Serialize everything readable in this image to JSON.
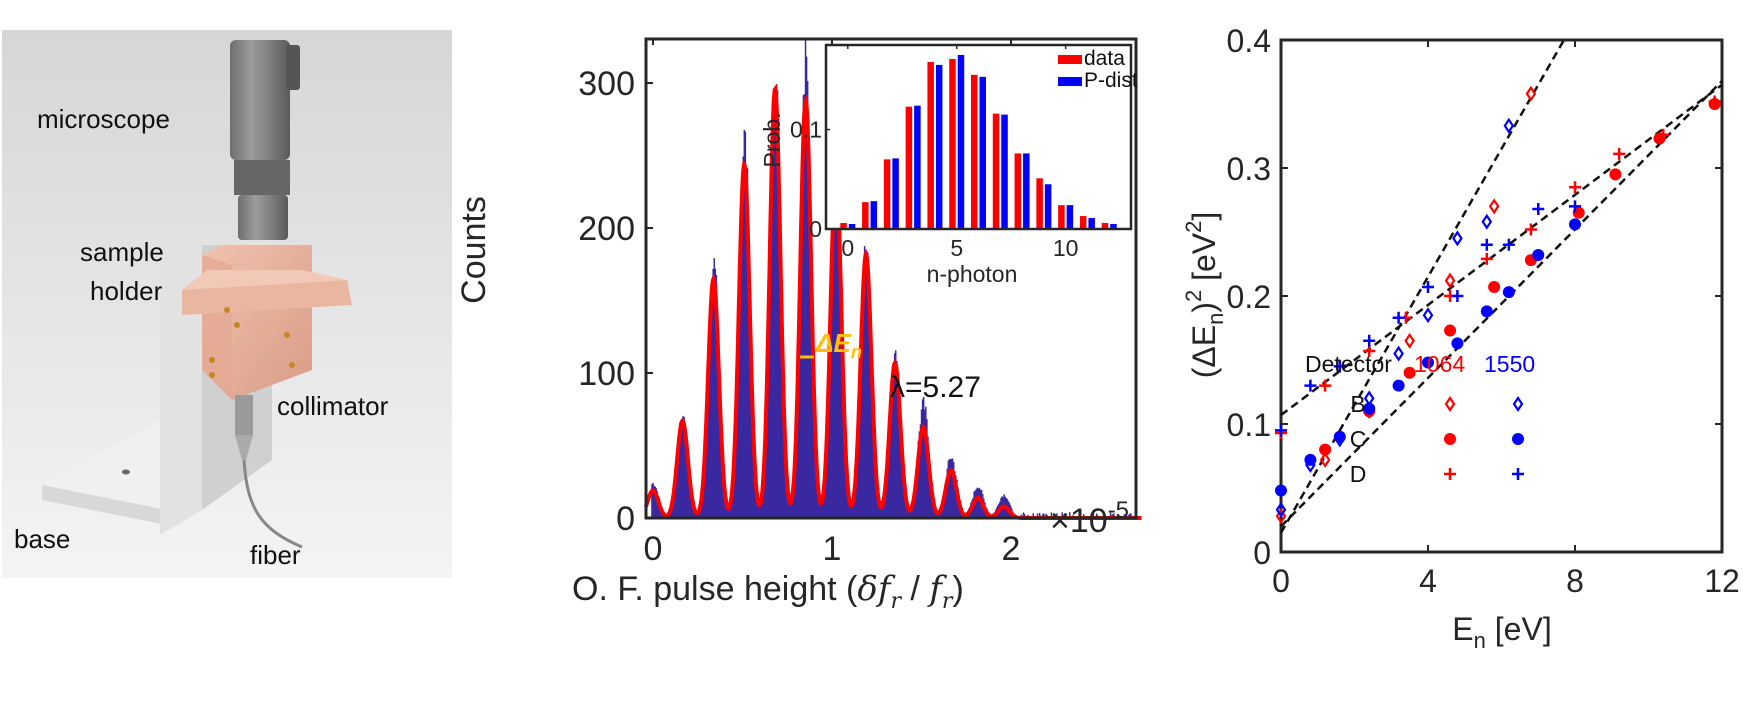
{
  "photo_panel": {
    "labels": {
      "microscope": "microscope",
      "sample_holder_1": "sample",
      "sample_holder_2": "holder",
      "collimator": "collimator",
      "base": "base",
      "fiber": "fiber"
    },
    "colors": {
      "copper": "#e8b4a0",
      "steel": "#8a8a8a",
      "aluminum": "#e6e6e6",
      "background": "#d8d8d8"
    }
  },
  "chart_data": [
    {
      "type": "bar",
      "panel": "histogram",
      "title": "",
      "xlabel": "O. F. pulse height (δf_r / f_r)",
      "xlabel_parts": {
        "prefix": "O. F. pulse height (",
        "delta": "δ",
        "f": "f",
        "sub": "r",
        "slash": " / ",
        "f2": "f",
        "sub2": "r",
        "suffix": ")"
      },
      "ylabel": "Counts",
      "x_scale_label": "×10",
      "x_scale_exponent": "-5",
      "xlim": [
        -0.02,
        2.7
      ],
      "ylim": [
        0,
        330
      ],
      "xticks": [
        0,
        1,
        2
      ],
      "xtick_labels": [
        "0",
        "1",
        "2"
      ],
      "yticks": [
        0,
        100,
        200,
        300
      ],
      "ytick_labels": [
        "0",
        "100",
        "200",
        "300"
      ],
      "peak_spacing": 0.168,
      "peak_width_sigma": 0.03,
      "histogram_color": "#3a28a0",
      "fit_color": "#ff0000",
      "fit_peaks": [
        {
          "n": 0,
          "x": 0.0,
          "counts": 19
        },
        {
          "n": 1,
          "x": 0.165,
          "counts": 67
        },
        {
          "n": 2,
          "x": 0.338,
          "counts": 165
        },
        {
          "n": 3,
          "x": 0.51,
          "counts": 244
        },
        {
          "n": 4,
          "x": 0.682,
          "counts": 296
        },
        {
          "n": 5,
          "x": 0.853,
          "counts": 289
        },
        {
          "n": 6,
          "x": 1.022,
          "counts": 240
        },
        {
          "n": 7,
          "x": 1.19,
          "counts": 182
        },
        {
          "n": 8,
          "x": 1.352,
          "counts": 107
        },
        {
          "n": 9,
          "x": 1.51,
          "counts": 63
        },
        {
          "n": 10,
          "x": 1.665,
          "counts": 33
        },
        {
          "n": 11,
          "x": 1.815,
          "counts": 14
        },
        {
          "n": 12,
          "x": 1.96,
          "counts": 8
        }
      ],
      "histogram_peak_maxima": [
        24,
        70,
        175,
        260,
        305,
        310,
        255,
        190,
        116,
        78,
        42,
        22,
        16
      ],
      "annotations": {
        "delta_e": "ΔE",
        "delta_e_sub": "n",
        "delta_e_color": "#ffc000",
        "lambda": "λ=5.27"
      },
      "inset": {
        "type": "bar",
        "xlabel": "n-photon",
        "ylabel": "Prob.",
        "xlim": [
          -1,
          13
        ],
        "ylim": [
          0,
          0.185
        ],
        "xticks": [
          0,
          5,
          10
        ],
        "xtick_labels": [
          "0",
          "5",
          "10"
        ],
        "yticks": [
          0,
          0.1
        ],
        "ytick_labels": [
          "0",
          "0.1"
        ],
        "legend_position": "top-right",
        "categories": [
          0,
          1,
          2,
          3,
          4,
          5,
          6,
          7,
          8,
          9,
          10,
          11,
          12
        ],
        "series": [
          {
            "name": "data",
            "color": "#ff0000",
            "values": [
              0.006,
              0.027,
              0.07,
              0.123,
              0.168,
              0.171,
              0.155,
              0.116,
              0.076,
              0.051,
              0.024,
              0.013,
              0.006
            ]
          },
          {
            "name": "P-dist",
            "color": "#0000ff",
            "values": [
              0.005,
              0.028,
              0.071,
              0.124,
              0.165,
              0.175,
              0.153,
              0.115,
              0.076,
              0.045,
              0.024,
              0.011,
              0.005
            ]
          }
        ]
      }
    },
    {
      "type": "scatter",
      "panel": "variance",
      "xlabel": "E",
      "xlabel_sub": "n",
      "xlabel_suffix": " [eV]",
      "ylabel_parts": {
        "open": "(ΔE",
        "sub": "n",
        "close": ")",
        "sup": "2",
        "unit_open": " [eV",
        "unit_sup": "2",
        "unit_close": "]"
      },
      "xlim": [
        0,
        12
      ],
      "ylim": [
        0,
        0.4
      ],
      "xticks": [
        0,
        4,
        8,
        12
      ],
      "xtick_labels": [
        "0",
        "4",
        "8",
        "12"
      ],
      "yticks": [
        0,
        0.1,
        0.2,
        0.3,
        0.4
      ],
      "ytick_labels": [
        "0",
        "0.1",
        "0.2",
        "0.3",
        "0.4"
      ],
      "legend": {
        "title": "Detector",
        "position": "bottom-right",
        "columns": [
          {
            "label": "1064",
            "color": "#ff0000"
          },
          {
            "label": "1550",
            "color": "#0000ff"
          }
        ],
        "rows": [
          {
            "label": "B",
            "marker": "diamond"
          },
          {
            "label": "C",
            "marker": "circle"
          },
          {
            "label": "D",
            "marker": "plus"
          }
        ]
      },
      "series": [
        {
          "name": "B-1064",
          "detector": "B",
          "wavelength": "1064",
          "marker": "diamond",
          "color": "#ff0000",
          "points": [
            [
              0,
              0.028
            ],
            [
              1.2,
              0.072
            ],
            [
              2.4,
              0.11
            ],
            [
              3.5,
              0.165
            ],
            [
              4.6,
              0.212
            ],
            [
              5.8,
              0.27
            ],
            [
              6.8,
              0.358
            ]
          ]
        },
        {
          "name": "B-1550",
          "detector": "B",
          "wavelength": "1550",
          "marker": "diamond",
          "color": "#0000ff",
          "points": [
            [
              0,
              0.033
            ],
            [
              0.8,
              0.068
            ],
            [
              1.6,
              0.088
            ],
            [
              2.4,
              0.12
            ],
            [
              3.2,
              0.155
            ],
            [
              4.0,
              0.185
            ],
            [
              4.8,
              0.245
            ],
            [
              5.6,
              0.258
            ],
            [
              6.2,
              0.333
            ]
          ]
        },
        {
          "name": "C-1064",
          "detector": "C",
          "wavelength": "1064",
          "marker": "circle",
          "color": "#ff0000",
          "points": [
            [
              1.2,
              0.08
            ],
            [
              2.4,
              0.11
            ],
            [
              3.5,
              0.14
            ],
            [
              4.6,
              0.173
            ],
            [
              5.8,
              0.207
            ],
            [
              6.8,
              0.228
            ],
            [
              8.1,
              0.265
            ],
            [
              9.1,
              0.295
            ],
            [
              10.3,
              0.323
            ],
            [
              11.8,
              0.35
            ]
          ]
        },
        {
          "name": "C-1550",
          "detector": "C",
          "wavelength": "1550",
          "marker": "circle",
          "color": "#0000ff",
          "points": [
            [
              0,
              0.048
            ],
            [
              0.8,
              0.072
            ],
            [
              1.6,
              0.09
            ],
            [
              2.4,
              0.112
            ],
            [
              3.2,
              0.13
            ],
            [
              4.0,
              0.148
            ],
            [
              4.8,
              0.163
            ],
            [
              5.6,
              0.188
            ],
            [
              6.2,
              0.203
            ],
            [
              7.0,
              0.232
            ],
            [
              8.0,
              0.256
            ]
          ]
        },
        {
          "name": "D-1064",
          "detector": "D",
          "wavelength": "1064",
          "marker": "plus",
          "color": "#ff0000",
          "points": [
            [
              0,
              0.093
            ],
            [
              1.2,
              0.13
            ],
            [
              2.4,
              0.157
            ],
            [
              3.4,
              0.183
            ],
            [
              4.6,
              0.2
            ],
            [
              5.6,
              0.229
            ],
            [
              6.8,
              0.252
            ],
            [
              8.0,
              0.285
            ],
            [
              9.2,
              0.311
            ],
            [
              10.4,
              0.326
            ],
            [
              11.8,
              0.352
            ]
          ]
        },
        {
          "name": "D-1550",
          "detector": "D",
          "wavelength": "1550",
          "marker": "plus",
          "color": "#0000ff",
          "points": [
            [
              0,
              0.095
            ],
            [
              0.8,
              0.13
            ],
            [
              1.6,
              0.145
            ],
            [
              2.4,
              0.165
            ],
            [
              3.2,
              0.183
            ],
            [
              4.0,
              0.207
            ],
            [
              4.8,
              0.2
            ],
            [
              5.6,
              0.24
            ],
            [
              6.2,
              0.24
            ],
            [
              7.0,
              0.268
            ],
            [
              8.0,
              0.27
            ]
          ]
        }
      ],
      "fit_lines": [
        {
          "name": "fit-B",
          "intercept": 0.015,
          "slope": 0.05
        },
        {
          "name": "fit-C",
          "intercept": 0.02,
          "slope": 0.029
        },
        {
          "name": "fit-D",
          "intercept": 0.107,
          "slope": 0.0215
        }
      ]
    }
  ]
}
